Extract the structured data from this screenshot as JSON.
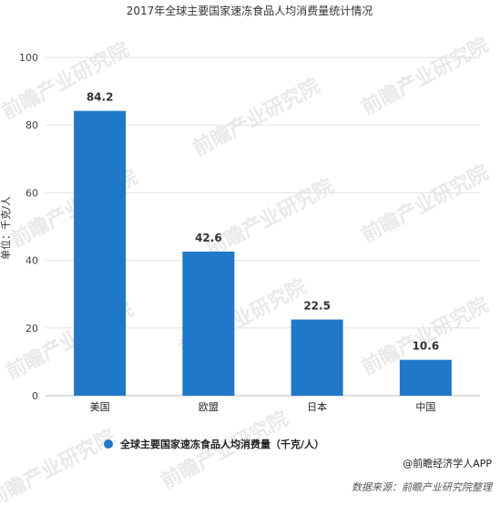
{
  "chart_data": {
    "type": "bar",
    "title": "2017年全球主要国家速冻食品人均消费量统计情况",
    "ylabel": "单位：千克/人",
    "xlabel": "",
    "categories": [
      "美国",
      "欧盟",
      "日本",
      "中国"
    ],
    "series": [
      {
        "name": "全球主要国家速冻食品人均消费量（千克/人）",
        "values": [
          84.2,
          42.6,
          22.5,
          10.6
        ]
      }
    ],
    "data_labels": [
      "84.2",
      "42.6",
      "22.5",
      "10.6"
    ],
    "ylim": [
      0,
      100
    ],
    "yticks": [
      0,
      20,
      40,
      60,
      80,
      100
    ],
    "grid": true,
    "legend_position": "bottom",
    "bar_color": "#1f78c8"
  },
  "credit": "@前瞻经济学人APP",
  "source": "数据来源：前瞻产业研究院整理",
  "watermark": "前瞻产业研究院"
}
